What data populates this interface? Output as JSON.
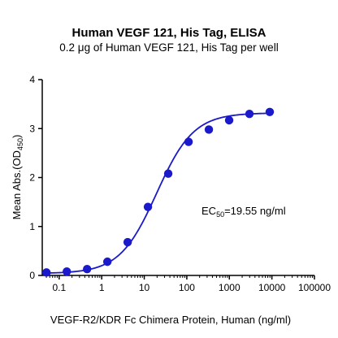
{
  "chart_data": {
    "type": "scatter",
    "title": "Human VEGF 121, His Tag, ELISA",
    "subtitle": "0.2 μg of Human VEGF 121, His Tag per well",
    "xlabel": "VEGF-R2/KDR Fc Chimera Protein, Human (ng/ml)",
    "ylabel": "Mean Abs.(OD",
    "ylabel_sub": "450",
    "ylabel_close": ")",
    "x_scale": "log",
    "xlim": [
      0.04,
      100000
    ],
    "ylim": [
      0,
      4
    ],
    "x_ticks": [
      {
        "value": 0.1,
        "label": "0.1"
      },
      {
        "value": 1,
        "label": "1"
      },
      {
        "value": 10,
        "label": "10"
      },
      {
        "value": 100,
        "label": "100"
      },
      {
        "value": 1000,
        "label": "1000"
      },
      {
        "value": 10000,
        "label": "10000"
      },
      {
        "value": 100000,
        "label": "100000"
      }
    ],
    "y_ticks": [
      {
        "value": 0,
        "label": "0"
      },
      {
        "value": 1,
        "label": "1"
      },
      {
        "value": 2,
        "label": "2"
      },
      {
        "value": 3,
        "label": "3"
      },
      {
        "value": 4,
        "label": "4"
      }
    ],
    "series": [
      {
        "color": "#1a1acc",
        "marker": "circle",
        "fit": "4PL",
        "points": [
          {
            "x": 0.0503,
            "y": 0.06
          },
          {
            "x": 0.151,
            "y": 0.08
          },
          {
            "x": 0.453,
            "y": 0.13
          },
          {
            "x": 1.36,
            "y": 0.28
          },
          {
            "x": 4.07,
            "y": 0.68
          },
          {
            "x": 12.2,
            "y": 1.4
          },
          {
            "x": 36.6,
            "y": 2.08
          },
          {
            "x": 110,
            "y": 2.73
          },
          {
            "x": 330,
            "y": 2.98
          },
          {
            "x": 989,
            "y": 3.17
          },
          {
            "x": 2967,
            "y": 3.3
          },
          {
            "x": 8901,
            "y": 3.34
          }
        ]
      }
    ],
    "fit_params": {
      "bottom": 0.04,
      "top": 3.32,
      "ec50": 19.55,
      "hill": 1.0
    },
    "annotation": {
      "prefix": "EC",
      "sub": "50",
      "suffix": "=19.55 ng/ml"
    },
    "grid": false,
    "legend": "none"
  }
}
